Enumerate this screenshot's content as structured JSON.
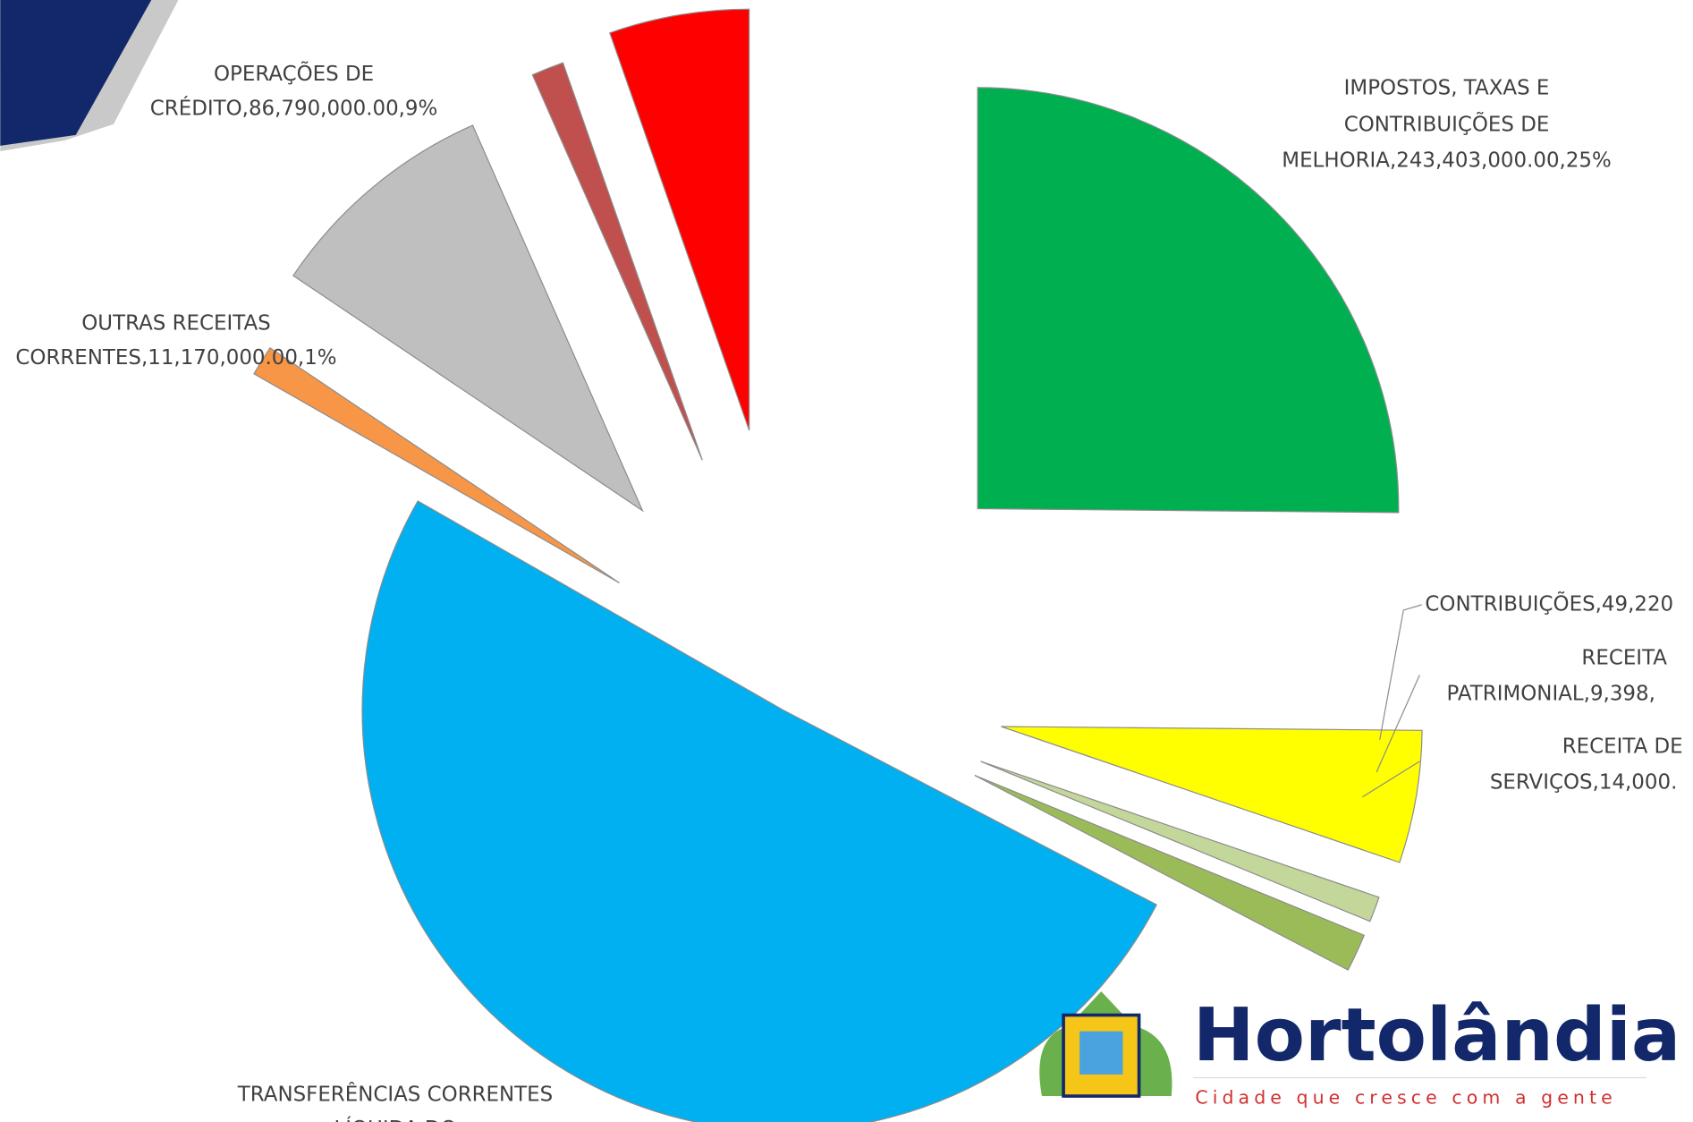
{
  "chart_data": {
    "type": "pie",
    "labels": [
      [
        "IMPOSTOS, TAXAS E",
        "CONTRIBUIÇÕES DE",
        "MELHORIA,243,403,000.00,25%"
      ],
      [
        "CONTRIBUIÇÕES,49,220"
      ],
      [
        "RECEITA",
        "PATRIMONIAL,9,398,"
      ],
      [
        "RECEITA DE",
        "SERVIÇOS,14,000."
      ],
      [
        "TRANSFERÊNCIAS CORRENTES",
        "LÍQUIDA DO"
      ],
      [
        "OUTRAS RECEITAS",
        "CORRENTES,11,170,000.00,1%"
      ],
      [
        "OPERAÇÕES DE",
        "CRÉDITO,86,790,000.00,9%"
      ],
      null,
      null
    ],
    "values": [
      243403000,
      49220000,
      9398000,
      14000000,
      490000000,
      11170000,
      86790000,
      12000000,
      52000000
    ],
    "colors": [
      "#00b050",
      "#ffff00",
      "#c4d79b",
      "#9bbb59",
      "#00b0f0",
      "#f79646",
      "#bfbfbf",
      "#c0504d",
      "#ff0000"
    ]
  },
  "logo": {
    "title": "Hortolândia",
    "tagline": "Cidade que cresce com a gente"
  }
}
